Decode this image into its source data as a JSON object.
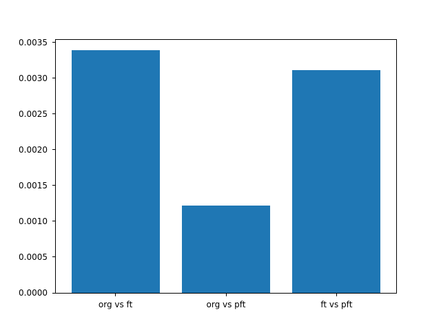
{
  "chart_data": {
    "type": "bar",
    "title": "",
    "xlabel": "",
    "ylabel": "",
    "categories": [
      "org vs ft",
      "org vs pft",
      "ft vs pft"
    ],
    "values": [
      0.00339,
      0.00122,
      0.00311
    ],
    "ytick_values": [
      0.0,
      0.0005,
      0.001,
      0.0015,
      0.002,
      0.0025,
      0.003,
      0.0035
    ],
    "ytick_labels": [
      "0.0000",
      "0.0005",
      "0.0010",
      "0.0015",
      "0.0020",
      "0.0025",
      "0.0030",
      "0.0035"
    ],
    "ylim": [
      0,
      0.003535
    ],
    "xlim": [
      -0.54,
      2.54
    ],
    "bar_width": 0.8,
    "bar_color": "#1f77b4",
    "axis_color": "#000000",
    "text_color": "#000000",
    "background_color": "#ffffff",
    "grid": false,
    "legend": false
  }
}
